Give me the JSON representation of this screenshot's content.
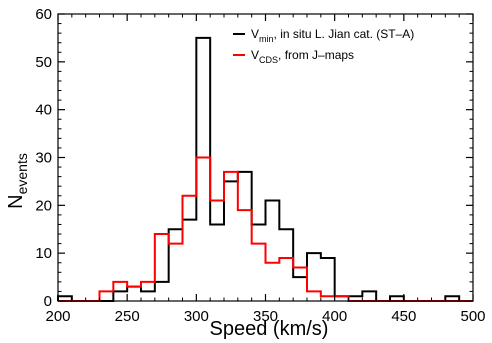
{
  "chart_data": {
    "type": "histogram",
    "xlabel": "Speed (km/s)",
    "ylabel": {
      "main": "N",
      "sub": "events"
    },
    "xlim": [
      200,
      500
    ],
    "ylim": [
      0,
      60
    ],
    "xticks": [
      200,
      250,
      300,
      350,
      400,
      450,
      500
    ],
    "yticks": [
      0,
      10,
      20,
      30,
      40,
      50,
      60
    ],
    "grid": false,
    "legend_position": "top-right",
    "bin_edges": [
      200,
      210,
      220,
      230,
      240,
      250,
      260,
      270,
      280,
      290,
      300,
      310,
      320,
      330,
      340,
      350,
      360,
      370,
      380,
      390,
      400,
      410,
      420,
      430,
      440,
      450,
      460,
      470,
      480,
      490,
      500
    ],
    "series": [
      {
        "legend": {
          "main": "V",
          "sub": "min",
          "rest": ", in situ L. Jian cat. (ST–A)"
        },
        "color": "#000000",
        "counts": [
          1,
          0,
          0,
          0,
          2,
          3,
          2,
          4,
          15,
          17,
          55,
          16,
          25,
          27,
          16,
          21,
          15,
          5,
          10,
          9,
          1,
          1,
          2,
          0,
          1,
          0,
          0,
          0,
          1,
          0
        ]
      },
      {
        "legend": {
          "main": "V",
          "sub": "CDS",
          "rest": ", from J–maps"
        },
        "color": "#ff0000",
        "counts": [
          0,
          0,
          0,
          2,
          4,
          3,
          4,
          14,
          12,
          22,
          30,
          21,
          27,
          19,
          12,
          8,
          9,
          7,
          2,
          1,
          1,
          0,
          0,
          0,
          0,
          0,
          0,
          0,
          0,
          0
        ]
      }
    ]
  }
}
